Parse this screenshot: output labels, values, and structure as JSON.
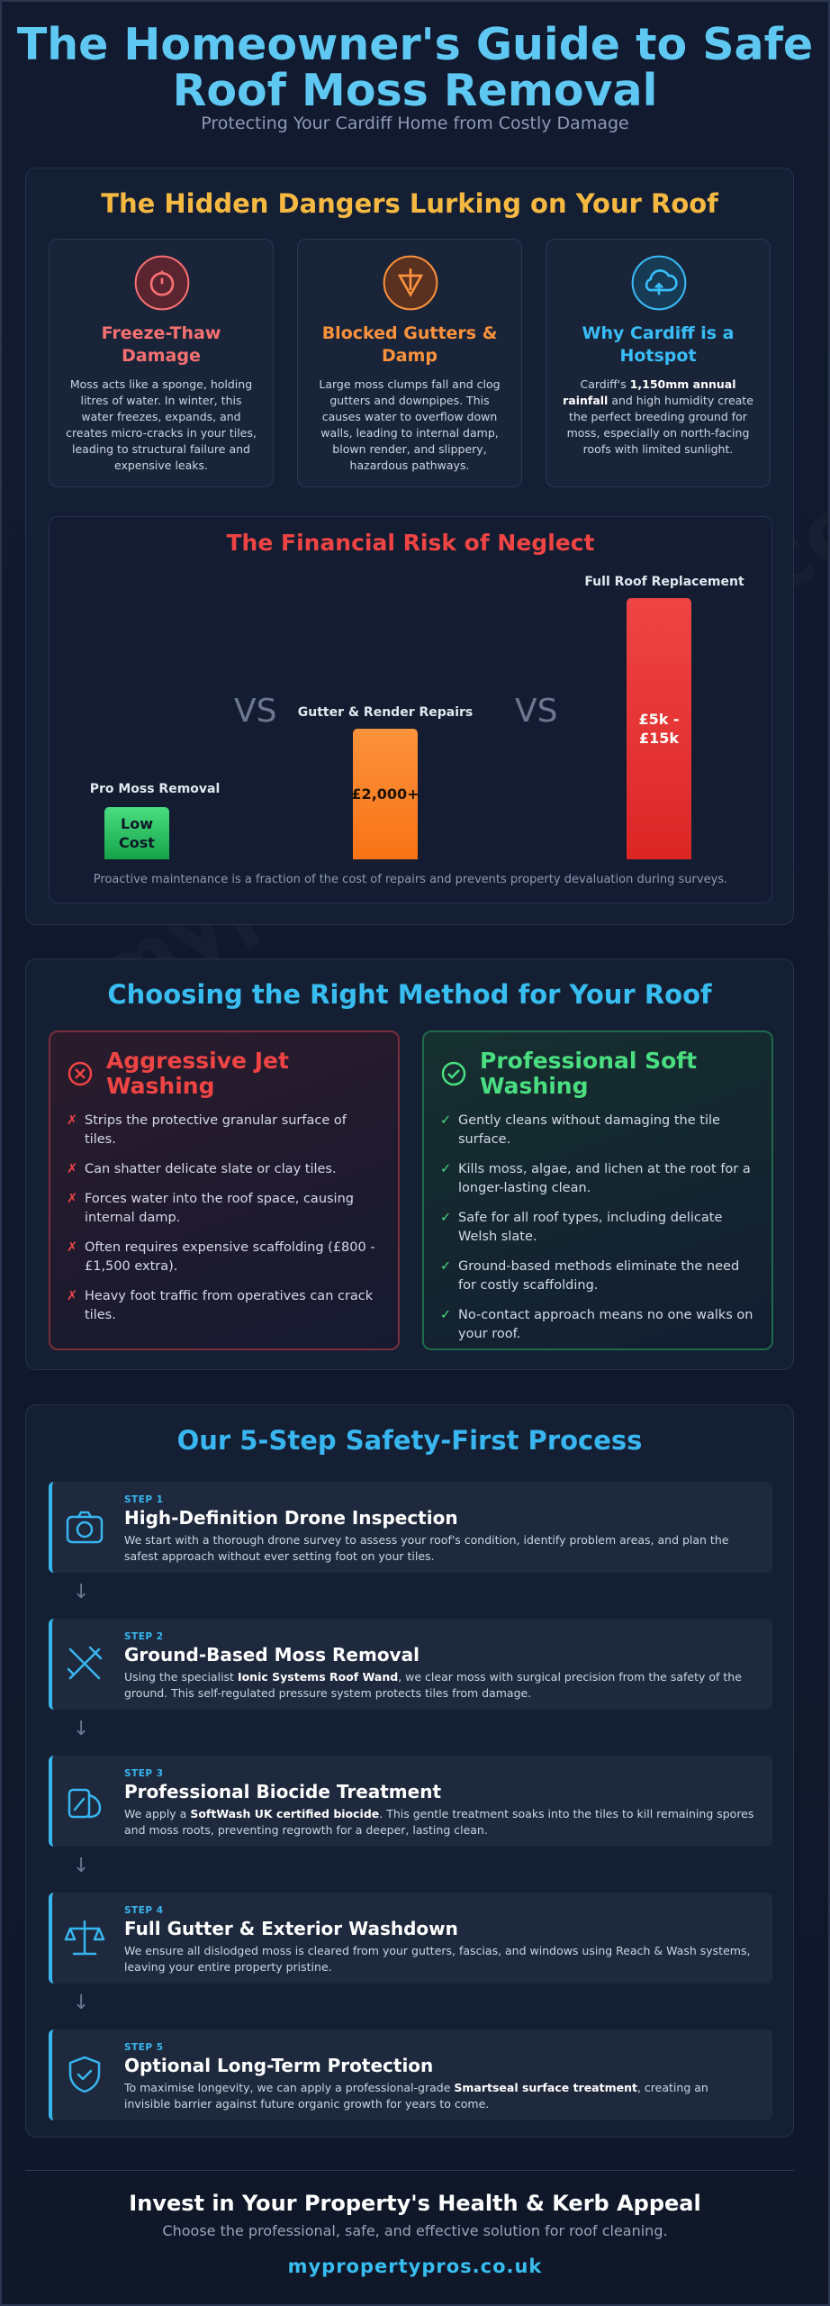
{
  "header": {
    "title": "The Homeowner's Guide to Safe Roof Moss Removal",
    "subtitle": "Protecting Your Cardiff Home from Costly Damage"
  },
  "watermark": "mypropertypros.co.uk",
  "dangers": {
    "title": "The Hidden Dangers Lurking on Your Roof",
    "cards": [
      {
        "title": "Freeze-Thaw Damage",
        "text": [
          "Moss acts like a sponge, holding litres of water. In winter, this water freezes, expands, and creates micro-cracks in your tiles, leading to structural failure and expensive leaks."
        ]
      },
      {
        "title": "Blocked Gutters & Damp",
        "text": [
          "Large moss clumps fall and clog gutters and downpipes. This causes water to overflow down walls, leading to internal damp, blown render, and slippery, hazardous pathways."
        ]
      },
      {
        "title": "Why Cardiff is a Hotspot",
        "text": [
          "Cardiff's ",
          "1,150mm annual rainfall",
          " and high humidity create the perfect breeding ground for moss, especially on north-facing roofs with limited sunlight."
        ]
      }
    ]
  },
  "financial": {
    "title": "The Financial Risk of Neglect",
    "vs": "VS",
    "bars": [
      {
        "label": "Pro Moss Removal",
        "value_text": "Low Cost"
      },
      {
        "label": "Gutter & Render Repairs",
        "value_text": "£2,000+"
      },
      {
        "label": "Full Roof Replacement",
        "value_text": "£5k - £15k"
      }
    ],
    "note": "Proactive maintenance is a fraction of the cost of repairs and prevents property devaluation during surveys."
  },
  "methods": {
    "title": "Choosing the Right Method for Your Roof",
    "bad": {
      "title": "Aggressive Jet Washing",
      "marker": "✗",
      "items": [
        "Strips the protective granular surface of tiles.",
        "Can shatter delicate slate or clay tiles.",
        "Forces water into the roof space, causing internal damp.",
        "Often requires expensive scaffolding (£800 - £1,500 extra).",
        "Heavy foot traffic from operatives can crack tiles."
      ]
    },
    "good": {
      "title": "Professional Soft Washing",
      "marker": "✓",
      "items": [
        "Gently cleans without damaging the tile surface.",
        "Kills moss, algae, and lichen at the root for a longer-lasting clean.",
        "Safe for all roof types, including delicate Welsh slate.",
        "Ground-based methods eliminate the need for costly scaffolding.",
        "No-contact approach means no one walks on your roof."
      ]
    }
  },
  "process": {
    "title": "Our 5-Step Safety-First Process",
    "arrow": "↓",
    "steps": [
      {
        "step": "STEP 1",
        "title": "High-Definition Drone Inspection",
        "text": [
          "We start with a thorough drone survey to assess your roof's condition, identify problem areas, and plan the safest approach without ever setting foot on your tiles."
        ]
      },
      {
        "step": "STEP 2",
        "title": "Ground-Based Moss Removal",
        "text": [
          "Using the specialist ",
          "Ionic Systems Roof Wand",
          ", we clear moss with surgical precision from the safety of the ground. This self-regulated pressure system protects tiles from damage."
        ]
      },
      {
        "step": "STEP 3",
        "title": "Professional Biocide Treatment",
        "text": [
          "We apply a ",
          "SoftWash UK certified biocide",
          ". This gentle treatment soaks into the tiles to kill remaining spores and moss roots, preventing regrowth for a deeper, lasting clean."
        ]
      },
      {
        "step": "STEP 4",
        "title": "Full Gutter & Exterior Washdown",
        "text": [
          "We ensure all dislodged moss is cleared from your gutters, fascias, and windows using Reach & Wash systems, leaving your entire property pristine."
        ]
      },
      {
        "step": "STEP 5",
        "title": "Optional Long-Term Protection",
        "text": [
          "To maximise longevity, we can apply a professional-grade ",
          "Smartseal surface treatment",
          ", creating an invisible barrier against future organic growth for years to come."
        ]
      }
    ]
  },
  "footer": {
    "title": "Invest in Your Property's Health & Kerb Appeal",
    "subtitle": "Choose the professional, safe, and effective solution for roof cleaning.",
    "url": "mypropertypros.co.uk"
  }
}
